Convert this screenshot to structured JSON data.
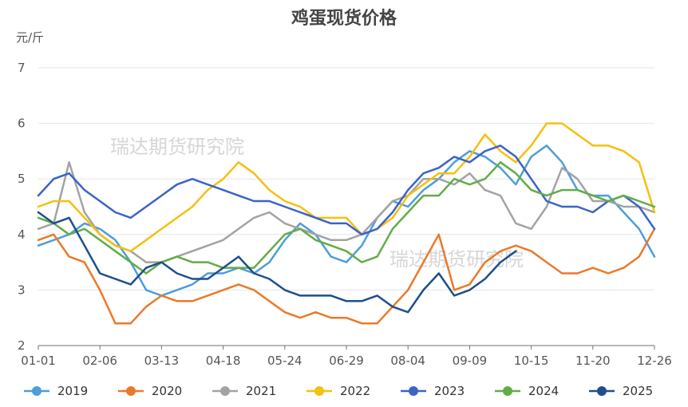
{
  "chart_data": {
    "type": "line",
    "title": "鸡蛋现货价格",
    "ylabel": "元/斤",
    "ylim": [
      2,
      7
    ],
    "yticks": [
      2,
      3,
      4,
      5,
      6,
      7
    ],
    "xticks": [
      "01-01",
      "02-06",
      "03-13",
      "04-18",
      "05-24",
      "06-29",
      "08-04",
      "09-09",
      "10-15",
      "11-20",
      "12-26"
    ],
    "grid": true,
    "legend_position": "bottom",
    "watermark": "瑞达期货研究院",
    "series": [
      {
        "name": "2019",
        "color": "#4e9ed9",
        "values": [
          3.8,
          3.9,
          4.0,
          4.2,
          4.1,
          3.9,
          3.5,
          3.0,
          2.9,
          3.0,
          3.1,
          3.3,
          3.3,
          3.4,
          3.3,
          3.5,
          3.9,
          4.2,
          4.0,
          3.6,
          3.5,
          3.8,
          4.3,
          4.6,
          4.5,
          4.8,
          5.0,
          5.3,
          5.5,
          5.4,
          5.2,
          4.9,
          5.4,
          5.6,
          5.3,
          4.8,
          4.7,
          4.7,
          4.4,
          4.1,
          3.6
        ]
      },
      {
        "name": "2020",
        "color": "#ea7a2b",
        "values": [
          3.9,
          4.0,
          3.6,
          3.5,
          3.0,
          2.4,
          2.4,
          2.7,
          2.9,
          2.8,
          2.8,
          2.9,
          3.0,
          3.1,
          3.0,
          2.8,
          2.6,
          2.5,
          2.6,
          2.5,
          2.5,
          2.4,
          2.4,
          2.7,
          3.0,
          3.5,
          4.0,
          3.0,
          3.1,
          3.5,
          3.7,
          3.8,
          3.7,
          3.5,
          3.3,
          3.3,
          3.4,
          3.3,
          3.4,
          3.6,
          4.1
        ]
      },
      {
        "name": "2021",
        "color": "#a3a3a3",
        "values": [
          4.1,
          4.2,
          5.3,
          4.4,
          4.0,
          3.8,
          3.7,
          3.5,
          3.5,
          3.6,
          3.7,
          3.8,
          3.9,
          4.1,
          4.3,
          4.4,
          4.2,
          4.1,
          4.0,
          3.9,
          3.9,
          4.0,
          4.3,
          4.6,
          4.7,
          5.0,
          5.0,
          4.9,
          5.1,
          4.8,
          4.7,
          4.2,
          4.1,
          4.5,
          5.2,
          5.0,
          4.6,
          4.6,
          4.5,
          4.5,
          4.4
        ]
      },
      {
        "name": "2022",
        "color": "#f5c00f",
        "values": [
          4.5,
          4.6,
          4.6,
          4.3,
          4.0,
          3.8,
          3.7,
          3.9,
          4.1,
          4.3,
          4.5,
          4.8,
          5.0,
          5.3,
          5.1,
          4.8,
          4.6,
          4.5,
          4.3,
          4.3,
          4.3,
          4.0,
          4.1,
          4.3,
          4.7,
          4.9,
          5.1,
          5.1,
          5.4,
          5.8,
          5.5,
          5.3,
          5.6,
          6.0,
          6.0,
          5.8,
          5.6,
          5.6,
          5.5,
          5.3,
          4.4
        ]
      },
      {
        "name": "2023",
        "color": "#3b63c8",
        "values": [
          4.7,
          5.0,
          5.1,
          4.8,
          4.6,
          4.4,
          4.3,
          4.5,
          4.7,
          4.9,
          5.0,
          4.9,
          4.8,
          4.7,
          4.6,
          4.6,
          4.5,
          4.4,
          4.3,
          4.2,
          4.2,
          4.0,
          4.1,
          4.4,
          4.8,
          5.1,
          5.2,
          5.4,
          5.3,
          5.5,
          5.6,
          5.4,
          5.0,
          4.6,
          4.5,
          4.5,
          4.4,
          4.6,
          4.7,
          4.5,
          4.1
        ]
      },
      {
        "name": "2024",
        "color": "#62ad46",
        "values": [
          4.3,
          4.2,
          4.0,
          4.1,
          3.9,
          3.7,
          3.5,
          3.3,
          3.5,
          3.6,
          3.5,
          3.5,
          3.4,
          3.4,
          3.4,
          3.7,
          4.0,
          4.1,
          3.9,
          3.8,
          3.7,
          3.5,
          3.6,
          4.1,
          4.4,
          4.7,
          4.7,
          5.0,
          4.9,
          5.0,
          5.3,
          5.1,
          4.8,
          4.7,
          4.8,
          4.8,
          4.7,
          4.6,
          4.7,
          4.6,
          4.5
        ]
      },
      {
        "name": "2025",
        "color": "#1e4f8a",
        "values": [
          4.4,
          4.2,
          4.3,
          3.8,
          3.3,
          3.2,
          3.1,
          3.4,
          3.5,
          3.3,
          3.2,
          3.2,
          3.4,
          3.6,
          3.3,
          3.2,
          3.0,
          2.9,
          2.9,
          2.9,
          2.8,
          2.8,
          2.9,
          2.7,
          2.6,
          3.0,
          3.3,
          2.9,
          3.0,
          3.2,
          3.5,
          3.7
        ]
      }
    ]
  }
}
